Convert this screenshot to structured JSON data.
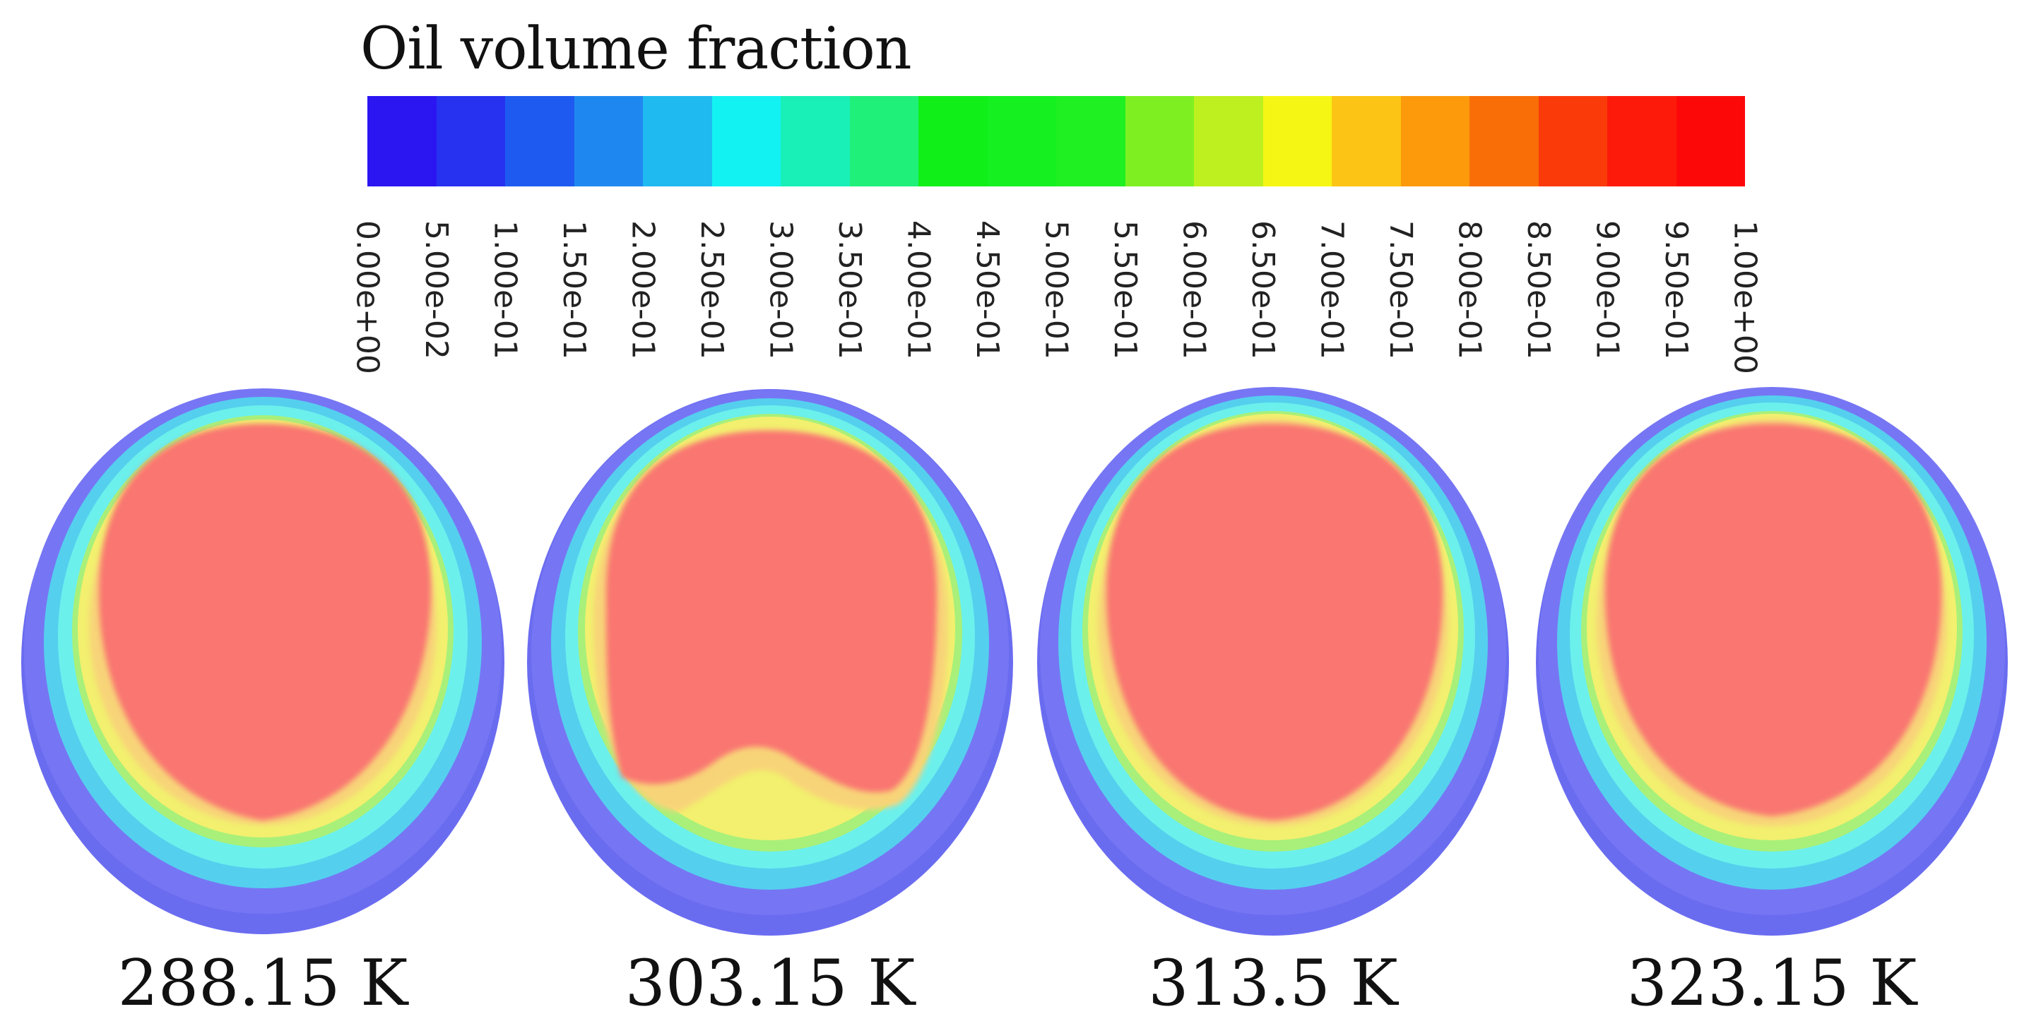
{
  "legend": {
    "title": "Oil volume fraction",
    "colors": [
      "#2b16f2",
      "#2732f0",
      "#1e5af0",
      "#1f88f0",
      "#1fbaf0",
      "#12f2f2",
      "#18f0b8",
      "#1ef07a",
      "#10f018",
      "#14f020",
      "#1ef022",
      "#7ef022",
      "#bdf01e",
      "#f6f614",
      "#fcc414",
      "#fc9a0c",
      "#f96e06",
      "#fb3a0a",
      "#fd1a0a",
      "#fd0808"
    ],
    "tick_labels": [
      "0.00e+00",
      "5.00e-02",
      "1.00e-01",
      "1.50e-01",
      "2.00e-01",
      "2.50e-01",
      "3.00e-01",
      "3.50e-01",
      "4.00e-01",
      "4.50e-01",
      "5.00e-01",
      "5.50e-01",
      "6.00e-01",
      "6.50e-01",
      "7.00e-01",
      "7.50e-01",
      "8.00e-01",
      "8.50e-01",
      "9.00e-01",
      "9.50e-01",
      "1.00e+00"
    ]
  },
  "panels": [
    {
      "temperature": "288.15 K"
    },
    {
      "temperature": "303.15 K"
    },
    {
      "temperature": "313.5 K"
    },
    {
      "temperature": "323.15 K"
    }
  ]
}
